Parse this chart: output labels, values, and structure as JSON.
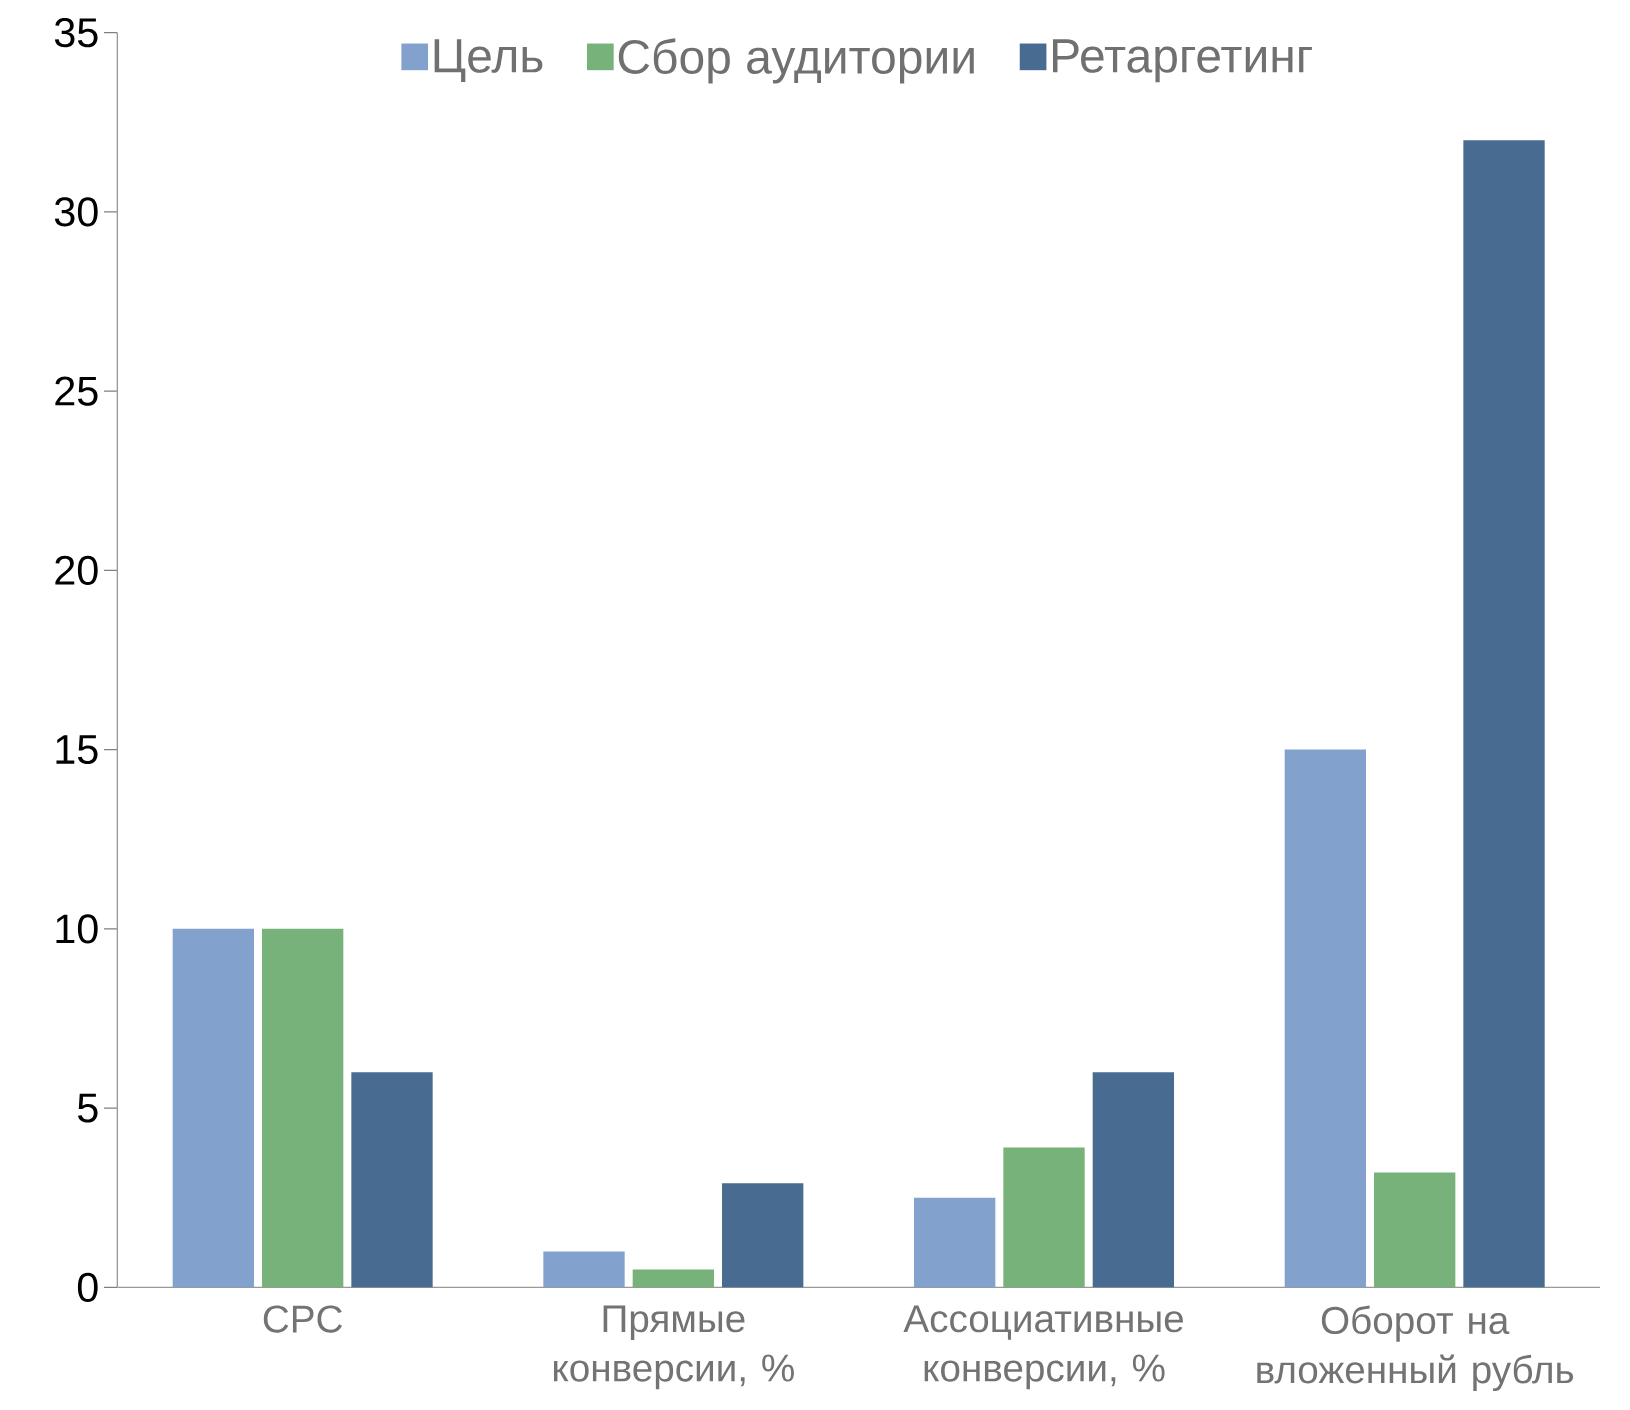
{
  "chart_data": {
    "type": "bar",
    "categories": [
      "CPC",
      "Прямые конверсии, %",
      "Ассоциативные конверсии, %",
      "Оборот на вложенный рубль"
    ],
    "series": [
      {
        "name": "Цель",
        "color": "#82a2cd",
        "values": [
          10,
          1,
          2.5,
          15
        ]
      },
      {
        "name": "Сбор аудитории",
        "color": "#78b27b",
        "values": [
          10,
          0.5,
          3.9,
          3.2
        ]
      },
      {
        "name": "Ретаргетинг",
        "color": "#476b91",
        "values": [
          6,
          2.9,
          6,
          32
        ]
      }
    ],
    "ylim": [
      0,
      35
    ],
    "yticks": [
      0,
      5,
      10,
      15,
      20,
      25,
      30,
      35
    ],
    "grid": false,
    "legend": "top"
  }
}
